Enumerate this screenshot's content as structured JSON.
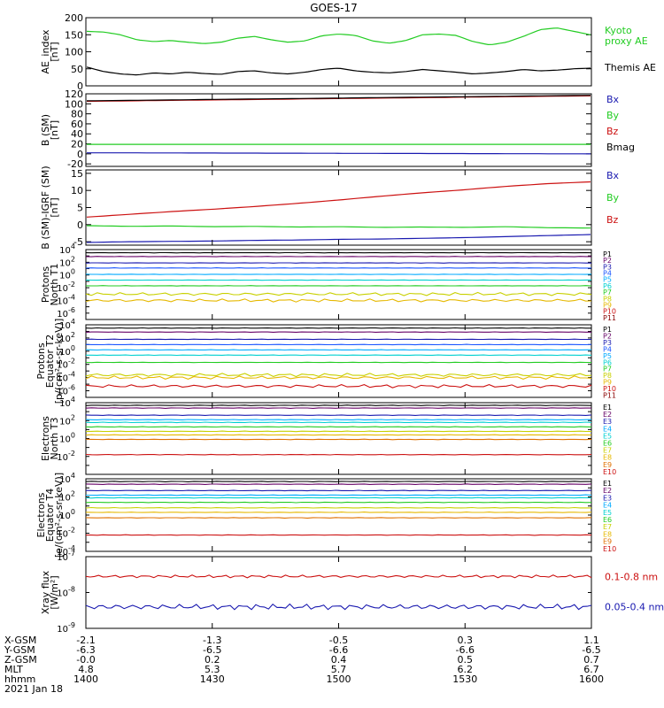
{
  "title": "GOES-17",
  "chart_data": [
    {
      "type": "line",
      "ylabel": [
        "AE_index",
        "[nT]"
      ],
      "ylim": [
        0,
        200
      ],
      "yticks": [
        "0",
        "50",
        "100",
        "150",
        "200"
      ],
      "series": [
        {
          "name": "Kyoto proxy AE",
          "legend_lines": [
            "Kyoto",
            "proxy AE"
          ],
          "color": "#22cc22",
          "values": [
            160,
            158,
            150,
            135,
            130,
            133,
            128,
            124,
            128,
            140,
            145,
            135,
            128,
            132,
            147,
            152,
            148,
            132,
            125,
            133,
            150,
            152,
            148,
            130,
            120,
            128,
            145,
            165,
            170,
            160,
            150
          ]
        },
        {
          "name": "Themis AE",
          "legend_lines": [
            "Themis AE"
          ],
          "color": "#000000",
          "values": [
            55,
            42,
            35,
            32,
            38,
            35,
            40,
            36,
            34,
            42,
            44,
            38,
            35,
            40,
            48,
            52,
            44,
            40,
            38,
            42,
            48,
            44,
            40,
            35,
            38,
            42,
            48,
            44,
            46,
            50,
            52
          ]
        }
      ]
    },
    {
      "type": "line",
      "ylabel": [
        "B (SM)",
        "[nT]"
      ],
      "ylim": [
        -25,
        120
      ],
      "yticks": [
        "-20",
        "0",
        "20",
        "40",
        "60",
        "80",
        "100",
        "120"
      ],
      "legend": [
        {
          "label": "Bx",
          "color": "#1a1ab0"
        },
        {
          "label": "By",
          "color": "#22cc22"
        },
        {
          "label": "Bz",
          "color": "#cc1111"
        },
        {
          "label": "Bmag",
          "color": "#000000"
        }
      ],
      "series": [
        {
          "name": "Bx",
          "color": "#1a1ab0",
          "values": [
            2,
            2,
            1.8,
            1.6,
            1.4,
            1.2,
            1,
            0.8,
            0.6,
            0.4,
            0.2,
            0
          ]
        },
        {
          "name": "By",
          "color": "#22cc22",
          "values": [
            19,
            19,
            19,
            19,
            19,
            19,
            19,
            19,
            19,
            19,
            19,
            19
          ]
        },
        {
          "name": "Bz",
          "color": "#cc1111",
          "values": [
            105,
            106,
            107,
            108,
            109,
            110,
            111,
            112,
            113,
            114,
            115,
            116
          ]
        },
        {
          "name": "Bmag",
          "color": "#000000",
          "values": [
            106,
            107,
            108,
            109,
            110,
            111,
            112,
            113,
            114,
            115,
            116,
            117
          ]
        }
      ]
    },
    {
      "type": "line",
      "ylabel": [
        "B (SM)-IGRF (SM)",
        "[nT]"
      ],
      "ylim": [
        -6,
        16
      ],
      "yticks": [
        "-5",
        "0",
        "5",
        "10",
        "15"
      ],
      "legend": [
        {
          "label": "Bx",
          "color": "#1a1ab0"
        },
        {
          "label": "By",
          "color": "#22cc22"
        },
        {
          "label": "Bz",
          "color": "#cc1111"
        }
      ],
      "series": [
        {
          "name": "Bx",
          "color": "#1a1ab0",
          "values": [
            -5.2,
            -5,
            -4.9,
            -4.8,
            -4.6,
            -4.5,
            -4.3,
            -4.2,
            -4,
            -3.8,
            -3.5,
            -3.2,
            -2.9
          ]
        },
        {
          "name": "By",
          "color": "#22cc22",
          "values": [
            -0.3,
            -0.5,
            -0.4,
            -0.6,
            -0.5,
            -0.7,
            -0.6,
            -0.8,
            -0.7,
            -0.8,
            -0.6,
            -0.9,
            -1
          ]
        },
        {
          "name": "Bz",
          "color": "#cc1111",
          "values": [
            2.2,
            3,
            3.8,
            4.5,
            5.3,
            6.2,
            7.2,
            8.3,
            9.3,
            10.2,
            11.2,
            12,
            12.5
          ]
        }
      ]
    },
    {
      "type": "line",
      "log": true,
      "ylabel": [
        "Protons",
        "North T1"
      ],
      "ylim_exp": [
        -7,
        4
      ],
      "tick_exps": [
        -6,
        -4,
        -2,
        0,
        2,
        4
      ],
      "channels": [
        {
          "label": "P1",
          "color": "#000000",
          "level": 3.5
        },
        {
          "label": "P2",
          "color": "#660066",
          "level": 2.9
        },
        {
          "label": "P3",
          "color": "#1a1ab0",
          "level": 1.9
        },
        {
          "label": "P4",
          "color": "#1a55ff",
          "level": 1.1
        },
        {
          "label": "P5",
          "color": "#00aaff",
          "level": 0.1
        },
        {
          "label": "P6",
          "color": "#00d0d0",
          "level": -0.8
        },
        {
          "label": "P7",
          "color": "#22cc22",
          "level": -1.7
        },
        {
          "label": "P8",
          "color": "#c8d000",
          "level": -3.0
        },
        {
          "label": "P9",
          "color": "#e6b800",
          "level": -4.0
        },
        {
          "label": "P10",
          "color": "#cc1111",
          "level": null
        },
        {
          "label": "P11",
          "color": "#880000",
          "level": null
        }
      ]
    },
    {
      "type": "line",
      "log": true,
      "ylabel": [
        "Protons",
        "Equator T2",
        "[p/(cm²-s-sr-keV)]"
      ],
      "ylim_exp": [
        -7,
        4
      ],
      "tick_exps": [
        -6,
        -4,
        -2,
        0,
        2,
        4
      ],
      "channels": [
        {
          "label": "P1",
          "color": "#000000",
          "level": 3.5
        },
        {
          "label": "P2",
          "color": "#660066",
          "level": 2.9
        },
        {
          "label": "P3",
          "color": "#1a1ab0",
          "level": 1.8
        },
        {
          "label": "P4",
          "color": "#1a55ff",
          "level": 1.0
        },
        {
          "label": "P5",
          "color": "#00aaff",
          "level": 0.2
        },
        {
          "label": "P6",
          "color": "#00d0d0",
          "level": -0.6
        },
        {
          "label": "P7",
          "color": "#22cc22",
          "level": -1.7
        },
        {
          "label": "P8",
          "color": "#c8d000",
          "level": -3.6
        },
        {
          "label": "P9",
          "color": "#e6b800",
          "level": -4.0
        },
        {
          "label": "P10",
          "color": "#cc1111",
          "level": -5.3
        },
        {
          "label": "P11",
          "color": "#880000",
          "level": null
        }
      ]
    },
    {
      "type": "line",
      "log": true,
      "ylabel": [
        "Electrons",
        "North T3"
      ],
      "ylim_exp": [
        -4,
        4
      ],
      "tick_exps": [
        -2,
        0,
        2,
        4
      ],
      "channels": [
        {
          "label": "E1",
          "color": "#000000",
          "level": 3.7
        },
        {
          "label": "E2",
          "color": "#660066",
          "level": 3.4
        },
        {
          "label": "E3",
          "color": "#1a1ab0",
          "level": 2.6
        },
        {
          "label": "E4",
          "color": "#00aaff",
          "level": 2.1
        },
        {
          "label": "E5",
          "color": "#00d0d0",
          "level": 1.8
        },
        {
          "label": "E6",
          "color": "#22cc22",
          "level": 1.3
        },
        {
          "label": "E7",
          "color": "#c8d000",
          "level": 0.8
        },
        {
          "label": "E8",
          "color": "#e6b800",
          "level": 0.4
        },
        {
          "label": "E9",
          "color": "#e07000",
          "level": -0.1
        },
        {
          "label": "E10",
          "color": "#cc1111",
          "level": -1.8
        }
      ]
    },
    {
      "type": "line",
      "log": true,
      "ylabel": [
        "Electrons",
        "Equator T4",
        "[e/(cm²-s-sr-keV)]"
      ],
      "ylim_exp": [
        -4,
        4
      ],
      "tick_exps": [
        -4,
        -2,
        0,
        2,
        4
      ],
      "channels": [
        {
          "label": "E1",
          "color": "#000000",
          "level": 3.7
        },
        {
          "label": "E2",
          "color": "#660066",
          "level": 3.4
        },
        {
          "label": "E3",
          "color": "#1a1ab0",
          "level": 2.7
        },
        {
          "label": "E4",
          "color": "#00aaff",
          "level": 2.2
        },
        {
          "label": "E5",
          "color": "#00d0d0",
          "level": 1.9
        },
        {
          "label": "E6",
          "color": "#22cc22",
          "level": 1.4
        },
        {
          "label": "E7",
          "color": "#c8d000",
          "level": 0.8
        },
        {
          "label": "E8",
          "color": "#e6b800",
          "level": 0.3
        },
        {
          "label": "E9",
          "color": "#e07000",
          "level": -0.3
        },
        {
          "label": "E10",
          "color": "#cc1111",
          "level": -2.2
        }
      ]
    },
    {
      "type": "line",
      "log": true,
      "ylabel": [
        "Xray flux",
        "[W/m²]"
      ],
      "ylim_exp": [
        -9,
        -7
      ],
      "tick_exps": [
        -9,
        -8,
        -7
      ],
      "series": [
        {
          "name": "0.1-0.8 nm",
          "color": "#cc1111",
          "level": -7.55
        },
        {
          "name": "0.05-0.4 nm",
          "color": "#1a1ab0",
          "level": -8.4
        }
      ]
    }
  ],
  "xaxis": {
    "rows": [
      {
        "label": "X-GSM",
        "values": [
          "-2.1",
          "-1.3",
          "-0.5",
          "0.3",
          "1.1"
        ]
      },
      {
        "label": "Y-GSM",
        "values": [
          "-6.3",
          "-6.5",
          "-6.6",
          "-6.6",
          "-6.5"
        ]
      },
      {
        "label": "Z-GSM",
        "values": [
          "-0.0",
          "0.2",
          "0.4",
          "0.5",
          "0.7"
        ]
      },
      {
        "label": "MLT",
        "values": [
          "4.8",
          "5.3",
          "5.7",
          "6.2",
          "6.7"
        ]
      },
      {
        "label": "hhmm",
        "values": [
          "1400",
          "1430",
          "1500",
          "1530",
          "1600"
        ]
      }
    ],
    "date": "2021 Jan 18"
  }
}
